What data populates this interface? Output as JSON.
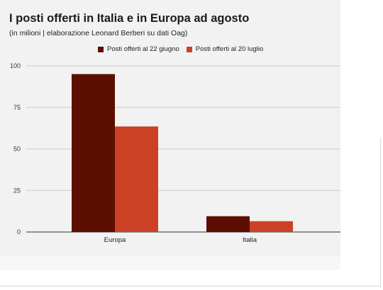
{
  "chart_data": {
    "type": "bar",
    "title": "I posti offerti in Italia e in Europa ad agosto",
    "subtitle": "(in milioni | elaborazione Leonard Berberi su dati Oag)",
    "categories": [
      "Europa",
      "Italia"
    ],
    "series": [
      {
        "name": "Posti offerti al 22 giugno",
        "values": [
          95,
          9.5
        ],
        "color": "#5c0f00"
      },
      {
        "name": "Posti offerti al 20 luglio",
        "values": [
          63.5,
          6.5
        ],
        "color": "#cc4125"
      }
    ],
    "ylim": [
      0,
      100
    ],
    "yticks": [
      0,
      25,
      50,
      75,
      100
    ],
    "grid": true,
    "legend_position": "top"
  }
}
